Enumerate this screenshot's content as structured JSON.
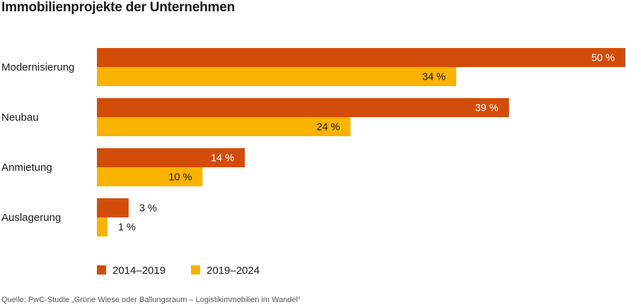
{
  "chart_data": {
    "type": "bar",
    "orientation": "horizontal",
    "title": "Immobilienprojekte der Unternehmen",
    "categories": [
      "Modernisierung",
      "Neubau",
      "Anmietung",
      "Auslagerung"
    ],
    "series": [
      {
        "name": "2014–2019",
        "color": "#d24d0a",
        "values": [
          50,
          39,
          14,
          3
        ],
        "labels": [
          "50 %",
          "39 %",
          "14 %",
          "3 %"
        ]
      },
      {
        "name": "2019–2024",
        "color": "#fbb200",
        "values": [
          34,
          24,
          10,
          1
        ],
        "labels": [
          "34 %",
          "24 %",
          "10 %",
          "1 %"
        ]
      }
    ],
    "xlim": [
      0,
      50
    ],
    "unit": "%",
    "grid": false,
    "legend_position": "bottom-left",
    "xlabel": "",
    "ylabel": ""
  },
  "source": "Quelle: PwC-Studie „Grüne Wiese oder Ballungsraum – Logistikimmobilien im Wandel“"
}
